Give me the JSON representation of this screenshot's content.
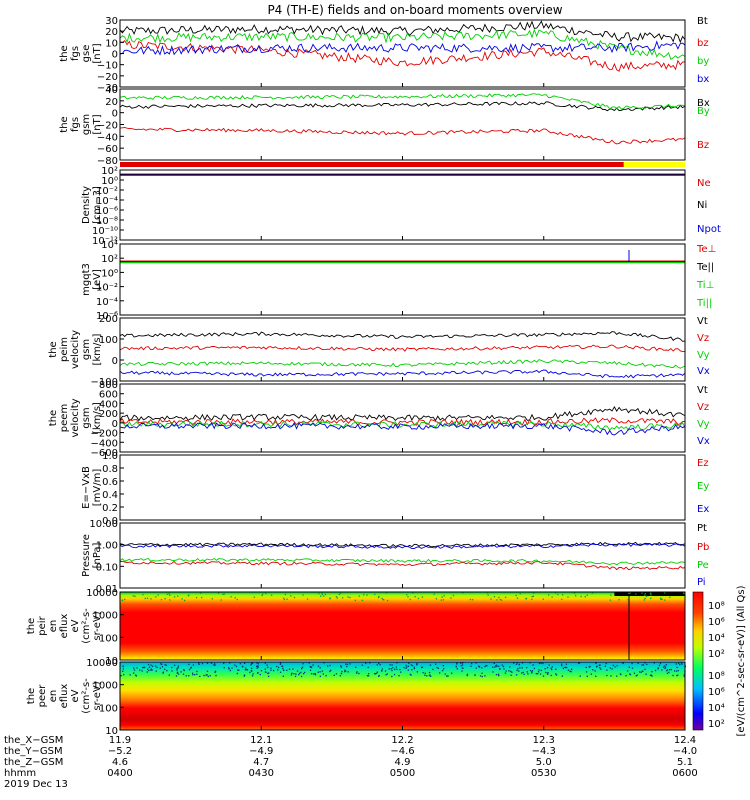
{
  "title": "P4 (TH-E) fields and on-board moments overview",
  "colors": {
    "black": "#000000",
    "red": "#e00000",
    "green": "#00d000",
    "blue": "#0000e0",
    "yellow": "#ffff00"
  },
  "chart_data": [
    {
      "type": "line",
      "ylabel": [
        "the",
        "fgs",
        "gse",
        "[nT]"
      ],
      "ylim": [
        -30,
        30
      ],
      "yticks": [
        "30",
        "20",
        "10",
        "0",
        "−10",
        "−20",
        "−30"
      ],
      "series": [
        {
          "name": "Bt",
          "color": "#000000",
          "x": [
            "0400",
            "0430",
            "0500",
            "0530",
            "0545",
            "0600"
          ],
          "y": [
            20,
            22,
            20,
            25,
            15,
            14
          ]
        },
        {
          "name": "bz",
          "color": "#e00000",
          "x": [
            "0400",
            "0430",
            "0500",
            "0530",
            "0545",
            "0600"
          ],
          "y": [
            8,
            3,
            -8,
            2,
            -12,
            -10
          ]
        },
        {
          "name": "by",
          "color": "#00d000",
          "x": [
            "0400",
            "0430",
            "0500",
            "0530",
            "0545",
            "0600"
          ],
          "y": [
            14,
            15,
            14,
            18,
            5,
            -3
          ]
        },
        {
          "name": "bx",
          "color": "#0000e0",
          "x": [
            "0400",
            "0430",
            "0500",
            "0530",
            "0545",
            "0600"
          ],
          "y": [
            2,
            5,
            5,
            5,
            5,
            8
          ]
        }
      ]
    },
    {
      "type": "line",
      "ylabel": [
        "the",
        "fgs",
        "gsm",
        "[nT]"
      ],
      "ylim": [
        -90,
        30
      ],
      "yticks": [
        "40",
        "20",
        "0",
        "−20",
        "−40",
        "−60",
        "−80"
      ],
      "series": [
        {
          "name": "Bx",
          "color": "#000000",
          "x": [
            "0400",
            "0430",
            "0500",
            "0530",
            "0545",
            "0600"
          ],
          "y": [
            0,
            2,
            3,
            6,
            -5,
            0
          ]
        },
        {
          "name": "By",
          "color": "#00d000",
          "x": [
            "0400",
            "0430",
            "0500",
            "0530",
            "0545",
            "0600"
          ],
          "y": [
            15,
            16,
            17,
            20,
            -2,
            2
          ]
        },
        {
          "name": "Bz",
          "color": "#e00000",
          "x": [
            "0400",
            "0430",
            "0500",
            "0530",
            "0545",
            "0600"
          ],
          "y": [
            -38,
            -40,
            -45,
            -40,
            -60,
            -55
          ]
        }
      ]
    },
    {
      "type": "line",
      "ylabel": [
        "Density",
        "[cm−3]"
      ],
      "yscale": "log",
      "yticks": [
        "10²",
        "10⁰",
        "10⁻²",
        "10⁻⁴",
        "10⁻⁶",
        "10⁻⁸",
        "10⁻¹⁰",
        "10⁻¹²"
      ],
      "series": [
        {
          "name": "Ne",
          "color": "#e00000"
        },
        {
          "name": "Ni",
          "color": "#000000"
        },
        {
          "name": "Npot",
          "color": "#0000e0"
        }
      ]
    },
    {
      "type": "line",
      "ylabel": [
        "mgqt3",
        "[eV]"
      ],
      "yscale": "log",
      "yticks": [
        "10⁴",
        "10²",
        "10⁰",
        "10⁻²",
        "10⁻⁴",
        "10⁻⁶"
      ],
      "series": [
        {
          "name": "Te⊥",
          "color": "#e00000"
        },
        {
          "name": "Te||",
          "color": "#000000"
        },
        {
          "name": "Ti⊥",
          "color": "#00d000"
        },
        {
          "name": "Ti||",
          "color": "#00d000"
        }
      ]
    },
    {
      "type": "line",
      "ylabel": [
        "the",
        "peim",
        "velocity",
        "gsm",
        "[km/s]"
      ],
      "ylim": [
        -100,
        200
      ],
      "yticks": [
        "200",
        "100",
        "0",
        "−100"
      ],
      "series": [
        {
          "name": "Vt",
          "color": "#000000",
          "x": [
            "0400",
            "0430",
            "0500",
            "0530",
            "0545",
            "0600"
          ],
          "y": [
            115,
            125,
            110,
            120,
            130,
            95
          ]
        },
        {
          "name": "Vz",
          "color": "#e00000",
          "x": [
            "0400",
            "0430",
            "0500",
            "0530",
            "0545",
            "0600"
          ],
          "y": [
            55,
            60,
            50,
            60,
            65,
            45
          ]
        },
        {
          "name": "Vy",
          "color": "#00d000",
          "x": [
            "0400",
            "0430",
            "0500",
            "0530",
            "0545",
            "0600"
          ],
          "y": [
            -20,
            -15,
            -25,
            -5,
            -15,
            -35
          ]
        },
        {
          "name": "Vx",
          "color": "#0000e0",
          "x": [
            "0400",
            "0430",
            "0500",
            "0530",
            "0545",
            "0600"
          ],
          "y": [
            -60,
            -70,
            -65,
            -55,
            -80,
            -70
          ]
        }
      ]
    },
    {
      "type": "line",
      "ylabel": [
        "the",
        "peem",
        "velocity",
        "gsm",
        "[km/s]"
      ],
      "ylim": [
        -600,
        800
      ],
      "yticks": [
        "800",
        "600",
        "400",
        "200",
        "0",
        "−200",
        "−400",
        "−600"
      ],
      "series": [
        {
          "name": "Vt",
          "color": "#000000",
          "x": [
            "0400",
            "0430",
            "0500",
            "0530",
            "0545",
            "0600"
          ],
          "y": [
            100,
            120,
            100,
            110,
            300,
            150
          ]
        },
        {
          "name": "Vz",
          "color": "#e00000",
          "x": [
            "0400",
            "0430",
            "0500",
            "0530",
            "0545",
            "0600"
          ],
          "y": [
            20,
            20,
            10,
            20,
            50,
            20
          ]
        },
        {
          "name": "Vy",
          "color": "#00d000",
          "x": [
            "0400",
            "0430",
            "0500",
            "0530",
            "0545",
            "0600"
          ],
          "y": [
            -30,
            -20,
            -40,
            -20,
            -100,
            -50
          ]
        },
        {
          "name": "Vx",
          "color": "#0000e0",
          "x": [
            "0400",
            "0430",
            "0500",
            "0530",
            "0545",
            "0600"
          ],
          "y": [
            -70,
            -60,
            -80,
            -60,
            -200,
            -80
          ]
        }
      ]
    },
    {
      "type": "line",
      "ylabel": [
        "E=−VxB",
        "[mV/m]"
      ],
      "ylim": [
        0.0,
        1.0
      ],
      "yticks": [
        "1.0",
        "0.8",
        "0.6",
        "0.4",
        "0.2",
        "0.0"
      ],
      "series": [
        {
          "name": "Ez",
          "color": "#e00000"
        },
        {
          "name": "Ey",
          "color": "#00d000"
        },
        {
          "name": "Ex",
          "color": "#0000e0"
        }
      ]
    },
    {
      "type": "line",
      "ylabel": [
        "Pressure",
        "[nPa]"
      ],
      "yscale": "log",
      "ylim": [
        0.01,
        10
      ],
      "yticks": [
        "10.00",
        "1.00",
        "0.10",
        "0.01"
      ],
      "series": [
        {
          "name": "Pt",
          "color": "#000000",
          "x": [
            "0400",
            "0430",
            "0500",
            "0530",
            "0545",
            "0600"
          ],
          "y": [
            1.0,
            1.05,
            0.9,
            1.0,
            1.15,
            1.1
          ]
        },
        {
          "name": "Pb",
          "color": "#e00000",
          "x": [
            "0400",
            "0430",
            "0500",
            "0530",
            "0545",
            "0600"
          ],
          "y": [
            0.15,
            0.14,
            0.12,
            0.15,
            0.08,
            0.09
          ]
        },
        {
          "name": "Pe",
          "color": "#00d000",
          "x": [
            "0400",
            "0430",
            "0500",
            "0530",
            "0545",
            "0600"
          ],
          "y": [
            0.2,
            0.2,
            0.18,
            0.18,
            0.14,
            0.15
          ]
        },
        {
          "name": "Pi",
          "color": "#0000e0",
          "x": [
            "0400",
            "0430",
            "0500",
            "0530",
            "0545",
            "0600"
          ],
          "y": [
            0.85,
            0.9,
            0.75,
            0.85,
            1.0,
            0.95
          ]
        }
      ]
    },
    {
      "type": "heatmap",
      "ylabel": [
        "the",
        "peir",
        "en",
        "eflux",
        "eV",
        "(cm²-s-",
        "sr-eV)"
      ],
      "yscale": "log",
      "yticks": [
        "10000",
        "1000",
        "100",
        "10"
      ],
      "colorbar_ticks": [
        "10⁸",
        "10⁶",
        "10⁴",
        "10²"
      ]
    },
    {
      "type": "heatmap",
      "ylabel": [
        "the",
        "peer",
        "en",
        "eflux",
        "eV",
        "(cm²-s-",
        "sr-eV)"
      ],
      "yscale": "log",
      "yticks": [
        "10000",
        "1000",
        "100",
        "10"
      ],
      "colorbar_ticks": [
        "10⁸",
        "10⁶",
        "10⁴",
        "10²"
      ]
    }
  ],
  "colorbar_label": "[eV/(cm^2-sec-sr-eV)] (All Qs)",
  "time_axis": {
    "rows": [
      {
        "label": "the_X−GSM",
        "values": [
          "11.9",
          "12.1",
          "12.2",
          "12.3",
          "12.4"
        ]
      },
      {
        "label": "the_Y−GSM",
        "values": [
          "−5.2",
          "−4.9",
          "−4.6",
          "−4.3",
          "−4.0"
        ]
      },
      {
        "label": "the_Z−GSM",
        "values": [
          "4.6",
          "4.7",
          "4.9",
          "5.0",
          "5.1"
        ]
      },
      {
        "label": "hhmm",
        "values": [
          "0400",
          "0430",
          "0500",
          "0530",
          "0600"
        ]
      }
    ],
    "date": "2019 Dec 13"
  }
}
